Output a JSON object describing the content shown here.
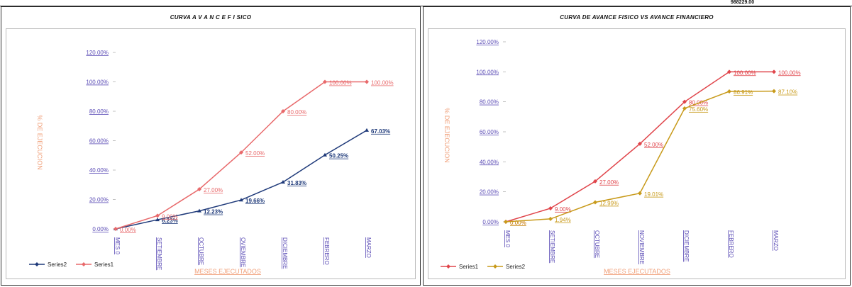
{
  "header": {
    "corner_value": "988229.00"
  },
  "chart_data": [
    {
      "type": "line",
      "title": "CURVA  A V A N C E  F I SICO",
      "xlabel": "MESES EJECUTADOS",
      "ylabel": "% DE EJECUCION",
      "categories": [
        "MES 0",
        "SETIEMBRE",
        "OCTUBRE",
        "OVIEMBRE",
        "DICIEMBRE",
        "FEBRERO",
        "MARZO"
      ],
      "ylim": [
        0,
        1.2
      ],
      "yticks": [
        "0.00%",
        "20.00%",
        "40.00%",
        "60.00%",
        "80.00%",
        "100.00%",
        "120.00%"
      ],
      "legend_position": "bottom-left",
      "series": [
        {
          "name": "Series2",
          "color": "#1f3a7a",
          "values": [
            0,
            0.0623,
            0.1223,
            0.1966,
            0.3183,
            0.5025,
            0.6703
          ],
          "labels": [
            "",
            "6.23%",
            "12.23%",
            "19.66%",
            "31.83%",
            "50.25%",
            "67.03%"
          ]
        },
        {
          "name": "Series1",
          "color": "#e8696b",
          "values": [
            0,
            0.09,
            0.27,
            0.52,
            0.8,
            1.0,
            1.0
          ],
          "labels": [
            "0.00%",
            "9.00%",
            "27.00%",
            "52.00%",
            "80.00%",
            "100.00%",
            "100.00%"
          ]
        }
      ]
    },
    {
      "type": "line",
      "title": "CURVA DE AVANCE FISICO  VS  AVANCE  FINANCIERO",
      "xlabel": "MESES EJECUTADOS",
      "ylabel": "% DE EJECUCION",
      "categories": [
        "MES 0",
        "SETIEMBRE",
        "OCTUBRE",
        "NOVIEMBRE",
        "DICIEMBRE",
        "FEBRERO",
        "MARZO"
      ],
      "ylim": [
        0,
        1.2
      ],
      "yticks": [
        "0.00%",
        "20.00%",
        "40.00%",
        "60.00%",
        "80.00%",
        "100.00%",
        "120.00%"
      ],
      "legend_position": "bottom-left",
      "series": [
        {
          "name": "Series1",
          "color": "#e0454b",
          "values": [
            0,
            0.09,
            0.27,
            0.52,
            0.8,
            1.0,
            1.0
          ],
          "labels": [
            "0.00%",
            "9.00%",
            "27.00%",
            "52.00%",
            "80.00%",
            "100.00%",
            "100.00%"
          ]
        },
        {
          "name": "Series2",
          "color": "#c89a1a",
          "values": [
            0,
            0.0194,
            0.1299,
            0.1901,
            0.756,
            0.8691,
            0.871
          ],
          "labels": [
            "0.00%",
            "1.94%",
            "12.99%",
            "19.01%",
            "75.60%",
            "86.91%",
            "87.10%"
          ]
        }
      ]
    }
  ]
}
